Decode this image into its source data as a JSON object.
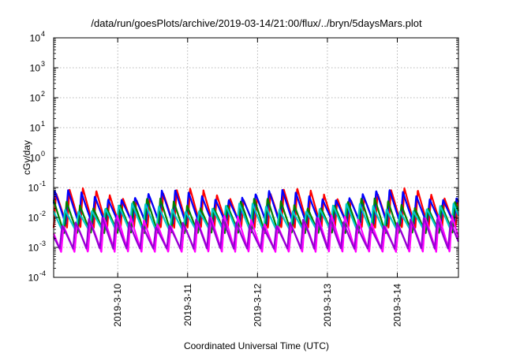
{
  "chart_data": {
    "type": "line",
    "title": "/data/run/goesPlots/archive/2019-03-14/21:00/flux/../bryn/5daysMars.plot",
    "xlabel": "Coordinated Universal Time (UTC)",
    "ylabel": "cGy/day",
    "yscale": "log",
    "ylim": [
      0.0001,
      10000
    ],
    "xlim_days": [
      "2019-03-09 02:00",
      "2019-03-14 21:00"
    ],
    "x_ticks": [
      "2019-3-10",
      "2019-3-11",
      "2019-3-12",
      "2019-3-13",
      "2019-3-14"
    ],
    "y_ticks": [
      {
        "base": "10",
        "exp": "4"
      },
      {
        "base": "10",
        "exp": "3"
      },
      {
        "base": "10",
        "exp": "2"
      },
      {
        "base": "10",
        "exp": "1"
      },
      {
        "base": "10",
        "exp": "0"
      },
      {
        "base": "10",
        "exp": "-1"
      },
      {
        "base": "10",
        "exp": "-2"
      },
      {
        "base": "10",
        "exp": "-3"
      },
      {
        "base": "10",
        "exp": "-4"
      }
    ],
    "grid": true,
    "legend": "none",
    "oscillation_period_hours": 4.6,
    "series": [
      {
        "color": "#ff0000",
        "peak": 0.095,
        "trough": 0.0045
      },
      {
        "color": "#0000ff",
        "peak": 0.085,
        "trough": 0.006
      },
      {
        "color": "#008000",
        "peak": 0.045,
        "trough": 0.003
      },
      {
        "color": "#00c8c8",
        "peak": 0.03,
        "trough": 0.0035
      },
      {
        "color": "#ff00ff",
        "peak": 0.012,
        "trough": 0.0007
      },
      {
        "color": "#9400d3",
        "peak": 0.01,
        "trough": 0.0009
      }
    ]
  }
}
